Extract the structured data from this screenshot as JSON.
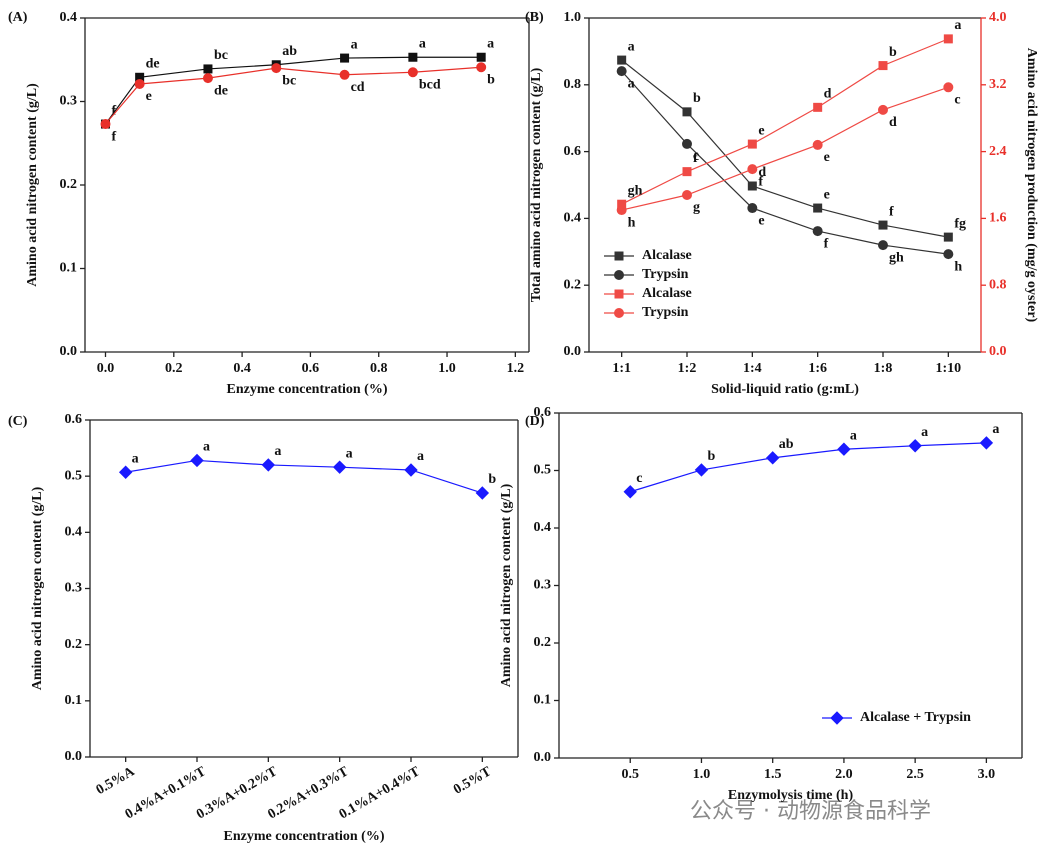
{
  "chart_data": [
    {
      "type": "line",
      "label": "(A)",
      "x_label": "Enzyme concentration (%)",
      "y_label": "Amino acid nitrogen content (g/L)",
      "x": [
        0,
        0.1,
        0.3,
        0.5,
        0.7,
        0.9,
        1.1
      ],
      "xlim": [
        -0.06,
        1.24
      ],
      "xticks": [
        {
          "value": 0,
          "label": "0.0"
        },
        {
          "value": 0.2,
          "label": "0.2"
        },
        {
          "value": 0.4,
          "label": "0.4"
        },
        {
          "value": 0.6,
          "label": "0.6"
        },
        {
          "value": 0.8,
          "label": "0.8"
        },
        {
          "value": 1.0,
          "label": "1.0"
        },
        {
          "value": 1.2,
          "label": "1.2"
        }
      ],
      "ylim": [
        0,
        0.4
      ],
      "yticks": [
        {
          "value": 0,
          "label": "0.0"
        },
        0.1,
        0.2,
        0.3,
        0.4
      ],
      "series": [
        {
          "color": "#111111",
          "marker": "square",
          "values": [
            0.273,
            0.329,
            0.339,
            0.344,
            0.352,
            0.353,
            0.353
          ],
          "letters": [
            "f",
            "de",
            "bc",
            "ab",
            "a",
            "a",
            "a"
          ]
        },
        {
          "color": "#e8302a",
          "marker": "circle",
          "values": [
            0.273,
            0.321,
            0.328,
            0.34,
            0.332,
            0.335,
            0.341
          ],
          "letters": [
            "f",
            "e",
            "de",
            "bc",
            "cd",
            "bcd",
            "b"
          ]
        }
      ]
    },
    {
      "type": "line",
      "label": "(B)",
      "x_label": "Solid-liquid ratio (g:mL)",
      "y_label": "Total amino acid nitrogen content (g/L)",
      "y2_label": "Amino acid nitrogen production (mg/g oyster)",
      "y2_color": "#e8302a",
      "categories": [
        "1:1",
        "1:2",
        "1:4",
        "1:6",
        "1:8",
        "1:10"
      ],
      "ylim": [
        0,
        1.0
      ],
      "yticks": [
        {
          "value": 0,
          "label": "0.0"
        },
        0.2,
        0.4,
        0.6,
        0.8,
        {
          "value": 1.0,
          "label": "1.0"
        }
      ],
      "y2lim": [
        0,
        4.0
      ],
      "y2ticks": [
        {
          "value": 0,
          "label": "0.0"
        },
        0.8,
        1.6,
        2.4,
        3.2,
        {
          "value": 4.0,
          "label": "4.0"
        }
      ],
      "legend": "lower left",
      "series": [
        {
          "name": "Alcalase",
          "color": "#333333",
          "marker": "square",
          "values": [
            0.874,
            0.719,
            0.497,
            0.431,
            0.38,
            0.344
          ],
          "letters": [
            "a",
            "b",
            "d",
            "e",
            "f",
            "fg"
          ]
        },
        {
          "name": "Trypsin",
          "color": "#333333",
          "marker": "circle",
          "values": [
            0.841,
            0.623,
            0.431,
            0.362,
            0.32,
            0.293
          ],
          "letters": [
            "a",
            "c",
            "e",
            "f",
            "gh",
            "h"
          ]
        },
        {
          "name": "Alcalase",
          "color": "#ef4a45",
          "marker": "square",
          "axis": "y2",
          "values": [
            1.77,
            2.16,
            2.49,
            2.93,
            3.43,
            3.75
          ],
          "letters": [
            "gh",
            "f",
            "e",
            "d",
            "b",
            "a"
          ]
        },
        {
          "name": "Trypsin",
          "color": "#ef4a45",
          "marker": "circle",
          "axis": "y2",
          "values": [
            1.7,
            1.88,
            2.19,
            2.48,
            2.9,
            3.17
          ],
          "letters": [
            "h",
            "g",
            "f",
            "e",
            "d",
            "c"
          ]
        }
      ]
    },
    {
      "type": "line",
      "label": "(C)",
      "x_label": "Enzyme concentration (%)",
      "y_label": "Amino acid nitrogen content (g/L)",
      "categories": [
        "0.5%A",
        "0.4%A+0.1%T",
        "0.3%A+0.2%T",
        "0.2%A+0.3%T",
        "0.1%A+0.4%T",
        "0.5%T"
      ],
      "ylim": [
        0,
        0.6
      ],
      "yticks": [
        {
          "value": 0,
          "label": "0.0"
        },
        0.1,
        0.2,
        0.3,
        0.4,
        0.5,
        0.6
      ],
      "series": [
        {
          "color": "#1a1aff",
          "marker": "diamond",
          "values": [
            0.507,
            0.528,
            0.52,
            0.516,
            0.511,
            0.47
          ],
          "letters": [
            "a",
            "a",
            "a",
            "a",
            "a",
            "b"
          ]
        }
      ]
    },
    {
      "type": "line",
      "label": "(D)",
      "x_label": "Enzymolysis time (h)",
      "y_label": "Amino acid nitrogen content (g/L)",
      "x": [
        0.5,
        1.0,
        1.5,
        2.0,
        2.5,
        3.0
      ],
      "xlim": [
        0,
        3.25
      ],
      "xticks": [
        0.5,
        {
          "value": 1.0,
          "label": "1.0"
        },
        1.5,
        {
          "value": 2.0,
          "label": "2.0"
        },
        2.5,
        {
          "value": 3.0,
          "label": "3.0"
        }
      ],
      "ylim": [
        0,
        0.6
      ],
      "yticks": [
        {
          "value": 0,
          "label": "0.0"
        },
        0.1,
        0.2,
        0.3,
        0.4,
        0.5,
        0.6
      ],
      "legend": "lower right",
      "series": [
        {
          "name": "Alcalase + Trypsin",
          "color": "#1a1aff",
          "marker": "diamond",
          "values": [
            0.463,
            0.501,
            0.522,
            0.537,
            0.543,
            0.548
          ],
          "letters": [
            "c",
            "b",
            "ab",
            "a",
            "a",
            "a"
          ]
        }
      ]
    }
  ],
  "watermark": "公众号 · 动物源食品科学"
}
